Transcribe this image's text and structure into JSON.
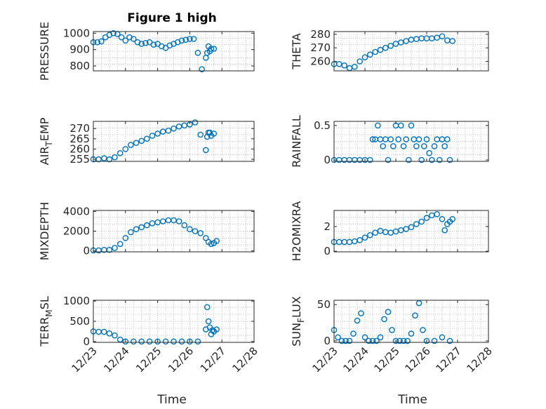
{
  "figure": {
    "title": "Figure 1 high",
    "xlabel": "Time",
    "x_ticks": [
      "12/23",
      "12/24",
      "12/25",
      "12/26",
      "12/27",
      "12/28"
    ],
    "marker_color": "#0072bd"
  },
  "chart_data": [
    {
      "type": "scatter",
      "name": "pressure",
      "ylabel": "PRESSURE",
      "ylabel_sub": "",
      "xlim": [
        "12/23",
        "12/28"
      ],
      "ylim": [
        770,
        1010
      ],
      "yticks": [
        800,
        900,
        1000
      ],
      "x": [
        "12/23 00:00",
        "12/23 03:00",
        "12/23 06:00",
        "12/23 09:00",
        "12/23 12:00",
        "12/23 15:00",
        "12/23 18:00",
        "12/23 21:00",
        "12/24 00:00",
        "12/24 03:00",
        "12/24 06:00",
        "12/24 09:00",
        "12/24 12:00",
        "12/24 15:00",
        "12/24 18:00",
        "12/24 21:00",
        "12/25 00:00",
        "12/25 03:00",
        "12/25 06:00",
        "12/25 09:00",
        "12/25 12:00",
        "12/25 15:00",
        "12/25 18:00",
        "12/25 21:00",
        "12/26 00:00",
        "12/26 03:00",
        "12/26 06:00",
        "12/26 09:00",
        "12/26 12:00",
        "12/26 13:00",
        "12/26 14:00",
        "12/26 15:00",
        "12/26 16:00",
        "12/26 18:00"
      ],
      "y": [
        945,
        945,
        950,
        975,
        990,
        1000,
        995,
        975,
        955,
        975,
        965,
        945,
        935,
        940,
        945,
        930,
        935,
        920,
        910,
        925,
        935,
        945,
        955,
        960,
        965,
        965,
        880,
        780,
        850,
        880,
        920,
        890,
        905,
        905
      ]
    },
    {
      "type": "scatter",
      "name": "theta",
      "ylabel": "THETA",
      "ylabel_sub": "",
      "xlim": [
        "12/23",
        "12/28"
      ],
      "ylim": [
        253,
        282
      ],
      "yticks": [
        260,
        270,
        280
      ],
      "x": [
        "12/23 00:00",
        "12/23 04:00",
        "12/23 08:00",
        "12/23 12:00",
        "12/23 16:00",
        "12/23 20:00",
        "12/24 00:00",
        "12/24 04:00",
        "12/24 08:00",
        "12/24 12:00",
        "12/24 16:00",
        "12/24 20:00",
        "12/25 00:00",
        "12/25 04:00",
        "12/25 08:00",
        "12/25 12:00",
        "12/25 16:00",
        "12/25 20:00",
        "12/26 00:00",
        "12/26 04:00",
        "12/26 08:00",
        "12/26 12:00",
        "12/26 16:00",
        "12/26 20:00"
      ],
      "y": [
        258,
        258,
        257,
        255,
        256,
        260,
        263,
        265,
        267,
        268.5,
        270,
        271.5,
        273,
        274,
        275,
        276,
        276.5,
        277,
        277,
        277,
        277.5,
        278.5,
        275.5,
        275
      ]
    },
    {
      "type": "scatter",
      "name": "air_temp",
      "ylabel": "AIR",
      "ylabel_sub": "TEMP",
      "xlim": [
        "12/23",
        "12/28"
      ],
      "ylim": [
        254,
        273.5
      ],
      "yticks": [
        255,
        260,
        265,
        270
      ],
      "x": [
        "12/23 00:00",
        "12/23 04:00",
        "12/23 08:00",
        "12/23 12:00",
        "12/23 16:00",
        "12/23 20:00",
        "12/24 00:00",
        "12/24 04:00",
        "12/24 08:00",
        "12/24 12:00",
        "12/24 16:00",
        "12/24 20:00",
        "12/25 00:00",
        "12/25 04:00",
        "12/25 08:00",
        "12/25 12:00",
        "12/25 16:00",
        "12/25 20:00",
        "12/26 00:00",
        "12/26 04:00",
        "12/26 08:00",
        "12/26 12:00",
        "12/26 13:00",
        "12/26 14:00",
        "12/26 15:00",
        "12/26 16:00",
        "12/26 18:00"
      ],
      "y": [
        255,
        255,
        255.5,
        255,
        256,
        258,
        260,
        262,
        263,
        264,
        265,
        266.5,
        267.5,
        268.5,
        269,
        270,
        271,
        271.5,
        272,
        273,
        267,
        259.5,
        266,
        268,
        268,
        266.5,
        267.5
      ]
    },
    {
      "type": "scatter",
      "name": "rainfall",
      "ylabel": "RAINFALL",
      "ylabel_sub": "",
      "xlim": [
        "12/23",
        "12/28"
      ],
      "ylim": [
        -0.02,
        0.56
      ],
      "yticks": [
        0,
        0.5
      ],
      "x": [
        "12/23 00:00",
        "12/23 04:00",
        "12/23 08:00",
        "12/23 12:00",
        "12/23 16:00",
        "12/23 20:00",
        "12/24 00:00",
        "12/24 04:00",
        "12/24 06:00",
        "12/24 08:00",
        "12/24 10:00",
        "12/24 12:00",
        "12/24 14:00",
        "12/24 16:00",
        "12/24 18:00",
        "12/24 20:00",
        "12/24 22:00",
        "12/25 00:00",
        "12/25 02:00",
        "12/25 04:00",
        "12/25 06:00",
        "12/25 08:00",
        "12/25 10:00",
        "12/25 12:00",
        "12/25 14:00",
        "12/25 16:00",
        "12/25 18:00",
        "12/25 20:00",
        "12/25 22:00",
        "12/26 00:00",
        "12/26 02:00",
        "12/26 04:00",
        "12/26 06:00",
        "12/26 08:00",
        "12/26 10:00",
        "12/26 12:00",
        "12/26 14:00",
        "12/26 16:00",
        "12/26 18:00"
      ],
      "y": [
        0,
        0,
        0,
        0,
        0,
        0,
        0,
        0,
        0.3,
        0.3,
        0.5,
        0.3,
        0.2,
        0.3,
        0,
        0.3,
        0.2,
        0.5,
        0.3,
        0.5,
        0.2,
        0.3,
        0,
        0.5,
        0.3,
        0.2,
        0.3,
        0,
        0.2,
        0.3,
        0.1,
        0,
        0.2,
        0.3,
        0,
        0.3,
        0.2,
        0.3,
        0
      ]
    },
    {
      "type": "scatter",
      "name": "mixdepth",
      "ylabel": "MIXDEPTH",
      "ylabel_sub": "",
      "xlim": [
        "12/23",
        "12/28"
      ],
      "ylim": [
        -100,
        4100
      ],
      "yticks": [
        0,
        2000,
        4000
      ],
      "x": [
        "12/23 00:00",
        "12/23 04:00",
        "12/23 08:00",
        "12/23 12:00",
        "12/23 16:00",
        "12/23 20:00",
        "12/24 00:00",
        "12/24 04:00",
        "12/24 08:00",
        "12/24 12:00",
        "12/24 16:00",
        "12/24 20:00",
        "12/25 00:00",
        "12/25 04:00",
        "12/25 08:00",
        "12/25 12:00",
        "12/25 16:00",
        "12/25 20:00",
        "12/26 00:00",
        "12/26 04:00",
        "12/26 08:00",
        "12/26 12:00",
        "12/26 14:00",
        "12/26 16:00",
        "12/26 18:00",
        "12/26 20:00"
      ],
      "y": [
        50,
        50,
        100,
        100,
        300,
        700,
        1300,
        1900,
        2200,
        2400,
        2600,
        2800,
        2900,
        3000,
        3100,
        3100,
        3000,
        2600,
        2200,
        2000,
        1800,
        1300,
        900,
        700,
        800,
        1000
      ]
    },
    {
      "type": "scatter",
      "name": "h2omixra",
      "ylabel": "H2OMIXRA",
      "ylabel_sub": "",
      "xlim": [
        "12/23",
        "12/28"
      ],
      "ylim": [
        -0.05,
        3.3
      ],
      "yticks": [
        0,
        2
      ],
      "x": [
        "12/23 00:00",
        "12/23 04:00",
        "12/23 08:00",
        "12/23 12:00",
        "12/23 16:00",
        "12/23 20:00",
        "12/24 00:00",
        "12/24 04:00",
        "12/24 08:00",
        "12/24 12:00",
        "12/24 16:00",
        "12/24 20:00",
        "12/25 00:00",
        "12/25 04:00",
        "12/25 08:00",
        "12/25 12:00",
        "12/25 16:00",
        "12/25 20:00",
        "12/26 00:00",
        "12/26 04:00",
        "12/26 08:00",
        "12/26 12:00",
        "12/26 14:00",
        "12/26 16:00",
        "12/26 18:00",
        "12/26 20:00"
      ],
      "y": [
        0.75,
        0.75,
        0.75,
        0.75,
        0.8,
        0.9,
        1.1,
        1.3,
        1.5,
        1.65,
        1.55,
        1.5,
        1.6,
        1.7,
        1.8,
        1.95,
        2.2,
        2.4,
        2.7,
        2.9,
        3.0,
        2.6,
        1.7,
        2.2,
        2.4,
        2.6
      ]
    },
    {
      "type": "scatter",
      "name": "terr_msl",
      "ylabel": "TERR",
      "ylabel_sub": "MSL",
      "xlim": [
        "12/23",
        "12/28"
      ],
      "ylim": [
        -20,
        1020
      ],
      "yticks": [
        0,
        500,
        1000
      ],
      "x": [
        "12/23 00:00",
        "12/23 04:00",
        "12/23 08:00",
        "12/23 12:00",
        "12/23 16:00",
        "12/23 20:00",
        "12/24 00:00",
        "12/24 06:00",
        "12/24 12:00",
        "12/24 18:00",
        "12/25 00:00",
        "12/25 06:00",
        "12/25 12:00",
        "12/25 18:00",
        "12/26 00:00",
        "12/26 06:00",
        "12/26 12:00",
        "12/26 13:00",
        "12/26 14:00",
        "12/26 15:00",
        "12/26 16:00",
        "12/26 17:00",
        "12/26 18:00",
        "12/26 20:00"
      ],
      "y": [
        250,
        240,
        240,
        200,
        150,
        50,
        0,
        0,
        0,
        0,
        0,
        0,
        0,
        0,
        0,
        0,
        300,
        850,
        500,
        350,
        180,
        280,
        250,
        300
      ]
    },
    {
      "type": "scatter",
      "name": "sun_flux",
      "ylabel": "SUN",
      "ylabel_sub": "FLUX",
      "xlim": [
        "12/23",
        "12/28"
      ],
      "ylim": [
        -2,
        56
      ],
      "yticks": [
        0,
        50
      ],
      "x": [
        "12/23 00:00",
        "12/23 03:00",
        "12/23 06:00",
        "12/23 09:00",
        "12/23 12:00",
        "12/23 15:00",
        "12/23 18:00",
        "12/23 21:00",
        "12/24 00:00",
        "12/24 03:00",
        "12/24 06:00",
        "12/24 09:00",
        "12/24 12:00",
        "12/24 15:00",
        "12/24 18:00",
        "12/24 21:00",
        "12/25 00:00",
        "12/25 03:00",
        "12/25 06:00",
        "12/25 09:00",
        "12/25 12:00",
        "12/25 15:00",
        "12/25 18:00",
        "12/25 21:00",
        "12/26 00:00",
        "12/26 06:00",
        "12/26 12:00",
        "12/26 18:00"
      ],
      "y": [
        15,
        5,
        0,
        0,
        0,
        10,
        28,
        38,
        5,
        0,
        0,
        0,
        5,
        30,
        40,
        15,
        0,
        0,
        0,
        0,
        10,
        35,
        52,
        15,
        0,
        0,
        5,
        0
      ]
    }
  ]
}
